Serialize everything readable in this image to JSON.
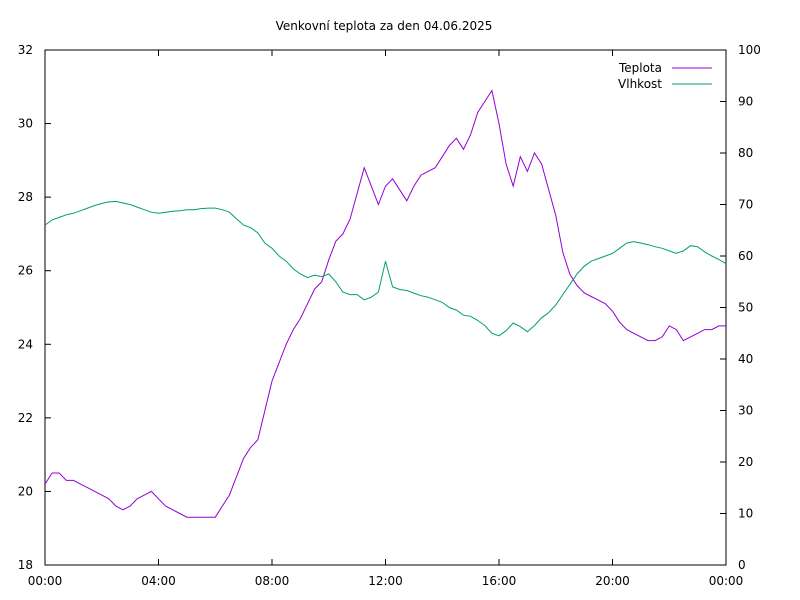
{
  "chart_data": {
    "type": "line",
    "title": "Venkovní teplota za den 04.06.2025",
    "xlabel": "",
    "ylabel": "",
    "y2label": "",
    "grid": false,
    "legend_position": "top-right",
    "x_ticks": [
      "00:00",
      "04:00",
      "08:00",
      "12:00",
      "16:00",
      "20:00",
      "00:00"
    ],
    "x_range_hours": [
      0,
      24
    ],
    "y_left": {
      "range": [
        18,
        32
      ],
      "ticks": [
        18,
        20,
        22,
        24,
        26,
        28,
        30,
        32
      ]
    },
    "y_right": {
      "range": [
        0,
        100
      ],
      "ticks": [
        0,
        10,
        20,
        30,
        40,
        50,
        60,
        70,
        80,
        90,
        100
      ]
    },
    "series": [
      {
        "name": "Teplota",
        "axis": "left",
        "color": "#9400d3",
        "x": [
          0,
          0.25,
          0.5,
          0.75,
          1.0,
          1.25,
          1.5,
          1.75,
          2.0,
          2.25,
          2.5,
          2.75,
          3.0,
          3.25,
          3.5,
          3.75,
          4.0,
          4.25,
          4.5,
          4.75,
          5.0,
          5.25,
          5.5,
          5.75,
          6.0,
          6.25,
          6.5,
          6.75,
          7.0,
          7.25,
          7.5,
          7.75,
          8.0,
          8.25,
          8.5,
          8.75,
          9.0,
          9.25,
          9.5,
          9.75,
          10.0,
          10.25,
          10.5,
          10.75,
          11.0,
          11.25,
          11.5,
          11.75,
          12.0,
          12.25,
          12.5,
          12.75,
          13.0,
          13.25,
          13.5,
          13.75,
          14.0,
          14.25,
          14.5,
          14.75,
          15.0,
          15.25,
          15.5,
          15.75,
          16.0,
          16.25,
          16.5,
          16.75,
          17.0,
          17.25,
          17.5,
          17.75,
          18.0,
          18.25,
          18.5,
          18.75,
          19.0,
          19.25,
          19.5,
          19.75,
          20.0,
          20.25,
          20.5,
          20.75,
          21.0,
          21.25,
          21.5,
          21.75,
          22.0,
          22.25,
          22.5,
          22.75,
          23.0,
          23.25,
          23.5,
          23.75,
          24.0
        ],
        "values": [
          20.2,
          20.5,
          20.5,
          20.3,
          20.3,
          20.2,
          20.1,
          20.0,
          19.9,
          19.8,
          19.6,
          19.5,
          19.6,
          19.8,
          19.9,
          20.0,
          19.8,
          19.6,
          19.5,
          19.4,
          19.3,
          19.3,
          19.3,
          19.3,
          19.3,
          19.6,
          19.9,
          20.4,
          20.9,
          21.2,
          21.4,
          22.2,
          23.0,
          23.5,
          24.0,
          24.4,
          24.7,
          25.1,
          25.5,
          25.7,
          26.3,
          26.8,
          27.0,
          27.4,
          28.1,
          28.8,
          28.3,
          27.8,
          28.3,
          28.5,
          28.2,
          27.9,
          28.3,
          28.6,
          28.7,
          28.8,
          29.1,
          29.4,
          29.6,
          29.3,
          29.7,
          30.3,
          30.6,
          30.9,
          30.0,
          28.9,
          28.3,
          29.1,
          28.7,
          29.2,
          28.9,
          28.2,
          27.5,
          26.5,
          25.9,
          25.6,
          25.4,
          25.3,
          25.2,
          25.1,
          24.9,
          24.6,
          24.4,
          24.3,
          24.2,
          24.1,
          24.1,
          24.2,
          24.5,
          24.4,
          24.1,
          24.2,
          24.3,
          24.4,
          24.4,
          24.5,
          24.5
        ]
      },
      {
        "name": "Vlhkost",
        "axis": "right",
        "color": "#009e73",
        "x": [
          0,
          0.25,
          0.5,
          0.75,
          1.0,
          1.25,
          1.5,
          1.75,
          2.0,
          2.25,
          2.5,
          2.75,
          3.0,
          3.25,
          3.5,
          3.75,
          4.0,
          4.25,
          4.5,
          4.75,
          5.0,
          5.25,
          5.5,
          5.75,
          6.0,
          6.25,
          6.5,
          6.75,
          7.0,
          7.25,
          7.5,
          7.75,
          8.0,
          8.25,
          8.5,
          8.75,
          9.0,
          9.25,
          9.5,
          9.75,
          10.0,
          10.25,
          10.5,
          10.75,
          11.0,
          11.25,
          11.5,
          11.75,
          12.0,
          12.25,
          12.5,
          12.75,
          13.0,
          13.25,
          13.5,
          13.75,
          14.0,
          14.25,
          14.5,
          14.75,
          15.0,
          15.25,
          15.5,
          15.75,
          16.0,
          16.25,
          16.5,
          16.75,
          17.0,
          17.25,
          17.5,
          17.75,
          18.0,
          18.25,
          18.5,
          18.75,
          19.0,
          19.25,
          19.5,
          19.75,
          20.0,
          20.25,
          20.5,
          20.75,
          21.0,
          21.25,
          21.5,
          21.75,
          22.0,
          22.25,
          22.5,
          22.75,
          23.0,
          23.25,
          23.5,
          23.75,
          24.0
        ],
        "values": [
          66,
          67,
          67.5,
          68,
          68.3,
          68.8,
          69.3,
          69.8,
          70.2,
          70.5,
          70.6,
          70.3,
          70.0,
          69.5,
          69.0,
          68.5,
          68.3,
          68.5,
          68.7,
          68.8,
          69.0,
          69.0,
          69.2,
          69.3,
          69.3,
          69.0,
          68.5,
          67.2,
          66.0,
          65.5,
          64.5,
          62.5,
          61.5,
          60.0,
          59.0,
          57.5,
          56.5,
          55.8,
          56.3,
          56.0,
          56.5,
          55.0,
          53.0,
          52.5,
          52.5,
          51.5,
          52.0,
          53.0,
          59.0,
          54.0,
          53.5,
          53.3,
          52.8,
          52.3,
          52.0,
          51.5,
          51.0,
          50.0,
          49.5,
          48.5,
          48.3,
          47.5,
          46.5,
          45.0,
          44.5,
          45.5,
          47.0,
          46.3,
          45.3,
          46.5,
          48.0,
          49.0,
          50.5,
          52.5,
          54.5,
          56.5,
          58.0,
          59.0,
          59.5,
          60.0,
          60.5,
          61.5,
          62.5,
          62.8,
          62.5,
          62.2,
          61.8,
          61.5,
          61.0,
          60.5,
          61.0,
          62.0,
          61.8,
          60.8,
          60.0,
          59.3,
          58.5
        ]
      }
    ]
  }
}
